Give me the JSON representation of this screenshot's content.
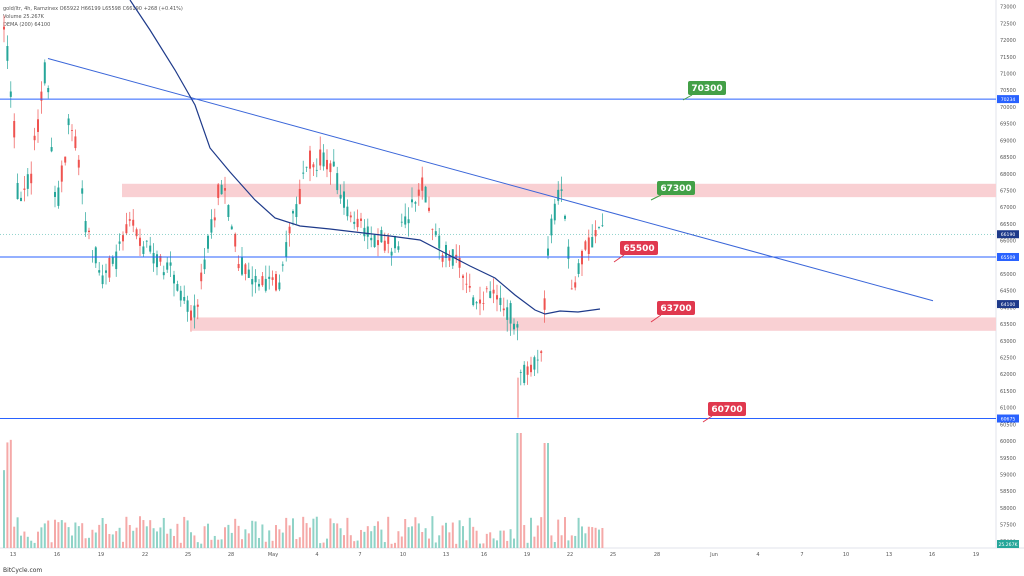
{
  "legend": {
    "line1": "gold/ltr, 4h, Ramzinex  O65922  H66199  L65598  C66190  +268 (+0.41%)",
    "line2": "Volume  25.267K",
    "line3": "DEMA (200)  64100"
  },
  "footer": "BitCycle.com",
  "colors": {
    "up": "#26a69a",
    "down": "#ef5350",
    "upVol": "#8fd3c7",
    "downVol": "#f5a9a8",
    "hline": "#2962ff",
    "trend": "#3a66d9",
    "dema": "#1e3a8a",
    "zone": "#f9d0d3",
    "greenLabel": "#43a047",
    "redLabel": "#e0384e"
  },
  "chart_data": {
    "type": "candlestick",
    "x_ticks": [
      "13",
      "16",
      "19",
      "22",
      "25",
      "28",
      "May",
      "4",
      "7",
      "10",
      "13",
      "16",
      "19",
      "22",
      "25",
      "28",
      "Jun",
      "4",
      "7",
      "10",
      "13",
      "16",
      "19"
    ],
    "y_ticks": [
      57000,
      57500,
      58000,
      58500,
      59000,
      59500,
      60000,
      60500,
      61000,
      61500,
      62000,
      62500,
      63000,
      63500,
      64000,
      64500,
      65000,
      65500,
      66000,
      66500,
      67000,
      67500,
      68000,
      68500,
      69000,
      69500,
      70000,
      70500,
      71000,
      71500,
      72000,
      72500,
      73000
    ],
    "ylim": [
      56800,
      73200
    ],
    "horizontal_lines": [
      {
        "price": 70234,
        "label": "70234"
      },
      {
        "price": 65509,
        "label": "65509"
      },
      {
        "price": 60675,
        "label": "60675"
      }
    ],
    "zones": [
      {
        "from": 67300,
        "to": 67700
      },
      {
        "from": 63300,
        "to": 63700
      }
    ],
    "callouts": [
      {
        "text": "70300",
        "kind": "green"
      },
      {
        "text": "67300",
        "kind": "green"
      },
      {
        "text": "65500",
        "kind": "red"
      },
      {
        "text": "63700",
        "kind": "red"
      },
      {
        "text": "60700",
        "kind": "red"
      }
    ],
    "price_tags": [
      {
        "text": "66190",
        "price": 66190
      },
      {
        "text": "64100",
        "price": 64100
      }
    ],
    "volume_tag": "25.267K",
    "trendline": {
      "from": {
        "date": "Apr 15",
        "price": 71450
      },
      "to": {
        "date": "Jun 16",
        "price": 64200
      }
    },
    "dema_label": "DEMA (200)",
    "dema_path": [
      [
        72500,
        73200
      ],
      [
        74500,
        72000
      ],
      [
        76500,
        70700
      ],
      [
        78500,
        69600
      ],
      [
        80500,
        68900
      ],
      [
        82500,
        68300
      ],
      [
        84500,
        67500
      ],
      [
        86500,
        66800
      ],
      [
        88500,
        66200
      ],
      [
        90000,
        66000
      ],
      [
        92000,
        65900
      ],
      [
        94000,
        65900
      ],
      [
        96000,
        65700
      ],
      [
        98000,
        65500
      ],
      [
        100000,
        65300
      ],
      [
        102000,
        65100
      ],
      [
        104000,
        64800
      ],
      [
        106000,
        64400
      ],
      [
        108000,
        63950
      ],
      [
        109500,
        63900
      ],
      [
        111000,
        63970
      ],
      [
        113000,
        64010
      ],
      [
        114500,
        64100
      ]
    ],
    "candles": "procedural"
  }
}
